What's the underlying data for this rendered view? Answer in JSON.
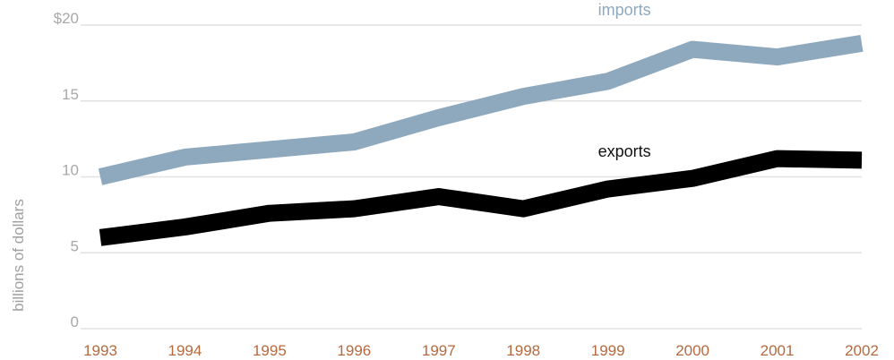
{
  "chart_data": {
    "type": "line",
    "ylabel": "billions of dollars",
    "ylim": [
      0,
      20
    ],
    "yticks": [
      0,
      5,
      10,
      15,
      20
    ],
    "ytick_labels": [
      "0",
      "5",
      "10",
      "15",
      "$20"
    ],
    "categories": [
      "1993",
      "1994",
      "1995",
      "1996",
      "1997",
      "1998",
      "1999",
      "2000",
      "2001",
      "2002"
    ],
    "series": [
      {
        "name": "imports",
        "values": [
          10.0,
          11.3,
          11.8,
          12.3,
          13.9,
          15.3,
          16.3,
          18.4,
          17.9,
          18.8
        ],
        "color": "#8ea8bd"
      },
      {
        "name": "exports",
        "values": [
          6.0,
          6.7,
          7.6,
          7.9,
          8.7,
          7.9,
          9.2,
          9.9,
          11.2,
          11.1
        ],
        "color": "#000000"
      }
    ],
    "grid": true,
    "legend": "inline labels"
  }
}
